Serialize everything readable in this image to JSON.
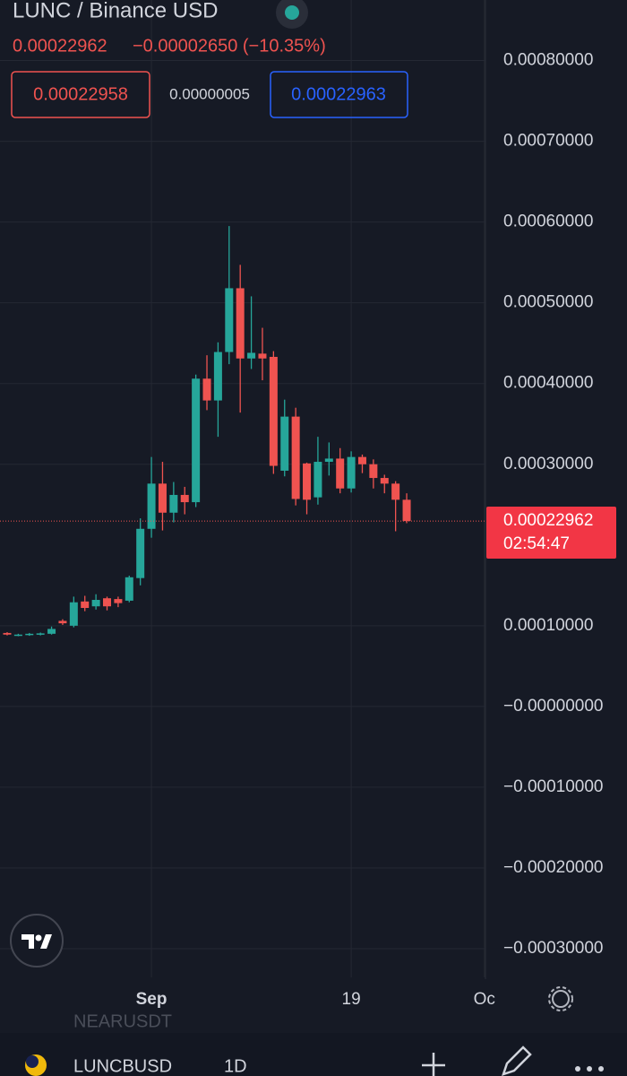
{
  "header": {
    "symbol": "LUNC / Binance USD",
    "price": "0.00022962",
    "change": "−0.00002650 (−10.35%)",
    "bid": "0.00022958",
    "spread": "0.00000005",
    "ask": "0.00022963",
    "countdown": "02:54:47"
  },
  "footer": {
    "ghost_symbol": "NEARUSDT",
    "symbol": "LUNCBUSD",
    "interval": "1D"
  },
  "chart_data": {
    "type": "candlestick",
    "up_color": "#26a69a",
    "down_color": "#ef5350",
    "grid": true,
    "categories": [
      null,
      null,
      null,
      null,
      null,
      null,
      null,
      null,
      null,
      null,
      null,
      null,
      null,
      "Sep",
      null,
      null,
      null,
      null,
      null,
      null,
      null,
      null,
      null,
      null,
      null,
      null,
      null,
      null,
      null,
      null,
      null,
      "19",
      null,
      null,
      null,
      null,
      null,
      null,
      null,
      null,
      null,
      null,
      null,
      "Oc"
    ],
    "open": [
      9.1e-05,
      8.8e-05,
      8.85e-05,
      8.9e-05,
      9e-05,
      0.000106,
      0.0001,
      0.00013,
      0.000124,
      0.000134,
      0.000133,
      0.000131,
      0.000159,
      0.00022,
      0.000276,
      0.00024,
      0.000262,
      0.000253,
      0.000406,
      0.000379,
      0.000439,
      0.000518,
      0.000431,
      0.000437,
      0.000433,
      0.000292,
      0.000359,
      0.000301,
      0.000259,
      0.000303,
      0.000307,
      0.00027,
      0.000309,
      0.0003,
      0.000283,
      0.000276,
      0.000256,
      null,
      null,
      null,
      null,
      null,
      null,
      null
    ],
    "high": [
      9.2e-05,
      9e-05,
      9.1e-05,
      9.15e-05,
      9.9e-05,
      0.000108,
      0.000136,
      0.000137,
      0.000139,
      0.000136,
      0.000136,
      0.000162,
      0.000233,
      0.000309,
      0.000303,
      0.000278,
      0.000272,
      0.000411,
      0.000435,
      0.000451,
      0.000595,
      0.000547,
      0.000508,
      0.000469,
      0.00044,
      0.00038,
      0.00037,
      0.000302,
      0.000334,
      0.000327,
      0.00032,
      0.000316,
      0.000312,
      0.000306,
      0.000287,
      0.000279,
      0.000264,
      null,
      null,
      null,
      null,
      null,
      null,
      null
    ],
    "low": [
      8.8e-05,
      8.7e-05,
      8.75e-05,
      8.8e-05,
      8.9e-05,
      0.000101,
      9.8e-05,
      0.000118,
      0.00012,
      0.000119,
      0.000123,
      0.000129,
      0.00015,
      0.000209,
      0.000218,
      0.000228,
      0.000238,
      0.000247,
      0.000367,
      0.000334,
      0.000424,
      0.000364,
      0.000418,
      0.000404,
      0.000288,
      0.000285,
      0.000249,
      0.000238,
      0.00025,
      0.000286,
      0.000264,
      0.000265,
      0.000289,
      0.00027,
      0.000264,
      0.000217,
      0.000227,
      null,
      null,
      null,
      null,
      null,
      null,
      null
    ],
    "close": [
      8.9e-05,
      8.9e-05,
      9e-05,
      9.05e-05,
      9.6e-05,
      0.000103,
      0.000129,
      0.000122,
      0.000132,
      0.000124,
      0.000128,
      0.00016,
      0.00022,
      0.000276,
      0.00024,
      0.000262,
      0.000253,
      0.000406,
      0.000379,
      0.000439,
      0.000518,
      0.000431,
      0.000438,
      0.000431,
      0.000298,
      0.000359,
      0.000257,
      0.000256,
      0.000303,
      0.000307,
      0.00027,
      0.000309,
      0.0003,
      0.000283,
      0.000276,
      0.000256,
      0.00022962,
      null,
      null,
      null,
      null,
      null,
      null,
      null
    ],
    "ylim": [
      -0.000335,
      0.000875
    ],
    "yticks": [
      {
        "value": 0.0008,
        "label": "0.00080000"
      },
      {
        "value": 0.0007,
        "label": "0.00070000"
      },
      {
        "value": 0.0006,
        "label": "0.00060000"
      },
      {
        "value": 0.0005,
        "label": "0.00050000"
      },
      {
        "value": 0.0004,
        "label": "0.00040000"
      },
      {
        "value": 0.0003,
        "label": "0.00030000"
      },
      {
        "value": 0.0001,
        "label": "0.00010000"
      },
      {
        "value": 0,
        "label": "−0.00000000"
      },
      {
        "value": -0.0001,
        "label": "−0.00010000"
      },
      {
        "value": -0.0002,
        "label": "−0.00020000"
      },
      {
        "value": -0.0003,
        "label": "−0.00030000"
      }
    ]
  }
}
